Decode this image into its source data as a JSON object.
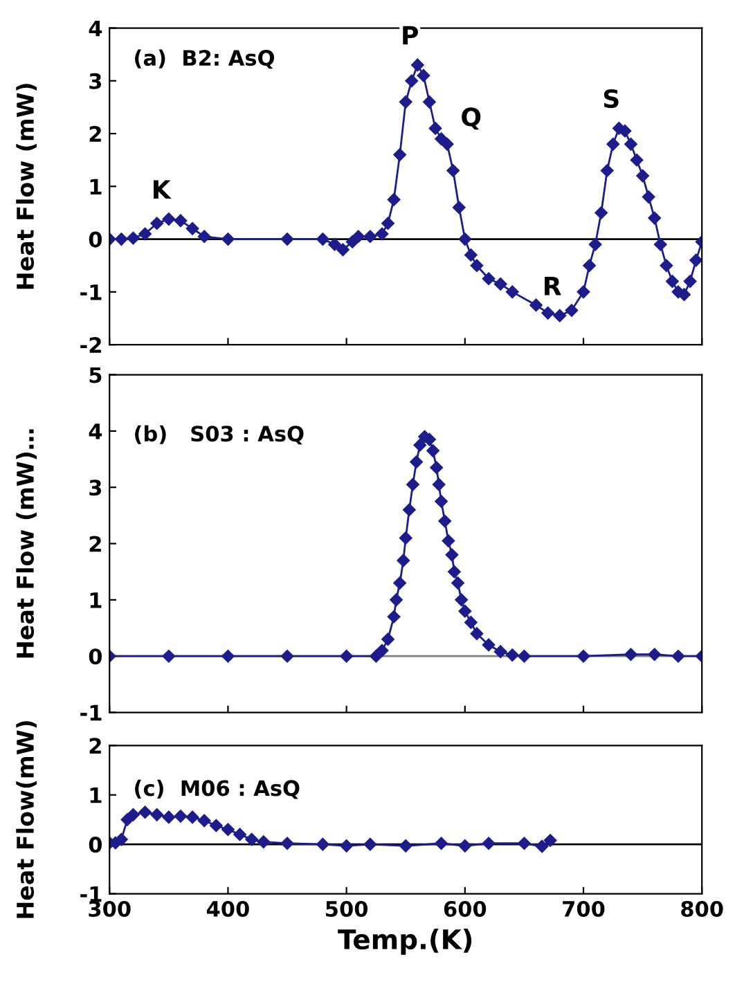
{
  "chart_data": [
    {
      "type": "line",
      "ylabel": "Heat Flow (mW)",
      "annotations": [
        "(a)  B2: AsQ",
        {
          "text": "K",
          "x": 350,
          "y": 0.38
        },
        {
          "text": "P",
          "x": 560,
          "y": 3.3
        },
        {
          "text": "Q",
          "x": 580,
          "y": 1.9
        },
        {
          "text": "R",
          "x": 680,
          "y": -1.45
        },
        {
          "text": "S",
          "x": 730,
          "y": 2.1
        }
      ],
      "series": [
        {
          "color": "#1c1c8c",
          "x": [
            300,
            310,
            320,
            330,
            340,
            350,
            360,
            370,
            380,
            400,
            450,
            480,
            490,
            497,
            505,
            510,
            520,
            530,
            535,
            540,
            545,
            550,
            555,
            560,
            565,
            570,
            575,
            580,
            585,
            590,
            595,
            600,
            605,
            610,
            620,
            630,
            640,
            660,
            670,
            680,
            690,
            700,
            705,
            710,
            715,
            720,
            725,
            730,
            735,
            740,
            745,
            750,
            755,
            760,
            765,
            770,
            775,
            780,
            785,
            790,
            795,
            800
          ],
          "values": [
            0,
            0,
            0.02,
            0.1,
            0.3,
            0.38,
            0.35,
            0.2,
            0.05,
            0,
            0,
            0,
            -0.1,
            -0.2,
            -0.05,
            0.05,
            0.05,
            0.1,
            0.3,
            0.75,
            1.6,
            2.6,
            3.0,
            3.3,
            3.1,
            2.6,
            2.1,
            1.9,
            1.8,
            1.3,
            0.6,
            0.0,
            -0.3,
            -0.5,
            -0.75,
            -0.85,
            -1.0,
            -1.25,
            -1.4,
            -1.45,
            -1.35,
            -1.0,
            -0.5,
            -0.1,
            0.5,
            1.3,
            1.8,
            2.1,
            2.05,
            1.8,
            1.5,
            1.2,
            0.8,
            0.4,
            -0.1,
            -0.5,
            -0.8,
            -1.0,
            -1.05,
            -0.8,
            -0.4,
            -0.05
          ]
        }
      ],
      "xlim": [
        300,
        800
      ],
      "xticks": [
        300,
        400,
        500,
        600,
        700,
        800
      ],
      "ylim": [
        -2,
        4
      ],
      "yticks": [
        -2,
        -1,
        0,
        1,
        2,
        3,
        4
      ],
      "tick_labels": "y",
      "ref_lines": [
        {
          "axis": "y",
          "value": 0,
          "color": "#000000"
        }
      ],
      "grid": false,
      "legend": false,
      "marker": "diamond",
      "line_style": "solid"
    },
    {
      "type": "line",
      "ylabel": "Heat Flow (mW)…",
      "annotations": [
        "(b)   S03 : AsQ"
      ],
      "series": [
        {
          "color": "#1c1c8c",
          "x": [
            300,
            350,
            400,
            450,
            500,
            525,
            530,
            535,
            540,
            542,
            545,
            548,
            550,
            553,
            556,
            559,
            562,
            566,
            570,
            573,
            576,
            578,
            580,
            583,
            586,
            589,
            591,
            594,
            597,
            600,
            605,
            610,
            620,
            630,
            640,
            650,
            700,
            740,
            760,
            780,
            800
          ],
          "values": [
            0,
            0,
            0,
            0,
            0,
            0,
            0.1,
            0.3,
            0.7,
            1.0,
            1.3,
            1.7,
            2.1,
            2.6,
            3.05,
            3.45,
            3.75,
            3.9,
            3.85,
            3.65,
            3.35,
            3.05,
            2.75,
            2.4,
            2.05,
            1.8,
            1.5,
            1.3,
            1.0,
            0.8,
            0.6,
            0.4,
            0.2,
            0.08,
            0.02,
            0,
            0,
            0.03,
            0.03,
            0,
            0
          ]
        }
      ],
      "xlim": [
        300,
        800
      ],
      "xticks": [
        300,
        400,
        500,
        600,
        700,
        800
      ],
      "ylim": [
        -1,
        5
      ],
      "yticks": [
        -1,
        0,
        1,
        2,
        3,
        4,
        5
      ],
      "tick_labels": "y",
      "ref_lines": [
        {
          "axis": "y",
          "value": 0,
          "color": "#808080"
        }
      ],
      "grid": false,
      "legend": false,
      "marker": "diamond",
      "line_style": "solid"
    },
    {
      "type": "line",
      "ylabel": "Heat Flow(mW)",
      "xlabel": "Temp.(K)",
      "annotations": [
        "(c)  M06 : AsQ"
      ],
      "series": [
        {
          "color": "#1c1c8c",
          "x": [
            300,
            305,
            310,
            315,
            320,
            330,
            340,
            350,
            360,
            370,
            380,
            390,
            400,
            410,
            420,
            430,
            450,
            480,
            500,
            520,
            550,
            580,
            600,
            620,
            650,
            665,
            672
          ],
          "values": [
            0.03,
            0.03,
            0.1,
            0.5,
            0.6,
            0.65,
            0.6,
            0.55,
            0.57,
            0.55,
            0.48,
            0.38,
            0.3,
            0.2,
            0.1,
            0.05,
            0.02,
            0,
            -0.03,
            0,
            -0.03,
            0.02,
            -0.03,
            0.02,
            0.02,
            -0.04,
            0.08
          ]
        }
      ],
      "xlim": [
        300,
        800
      ],
      "xticks": [
        300,
        400,
        500,
        600,
        700,
        800
      ],
      "ylim": [
        -1,
        2
      ],
      "yticks": [
        -1,
        0,
        1,
        2
      ],
      "ref_lines": [
        {
          "axis": "y",
          "value": 0,
          "color": "#000000"
        }
      ],
      "grid": false,
      "legend": false,
      "marker": "diamond",
      "line_style": "solid"
    }
  ]
}
